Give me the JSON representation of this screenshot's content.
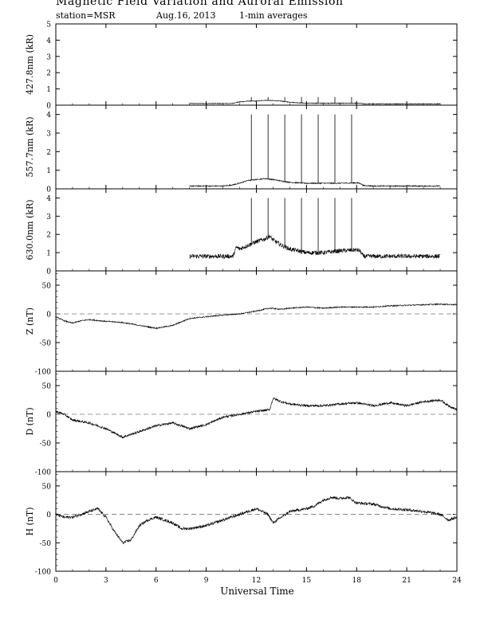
{
  "header": {
    "title": "Magnetic Field Variation and Auroral Emission",
    "station": "station=MSR",
    "date": "Aug.16, 2013",
    "averaging": "1-min averages"
  },
  "chart_data": [
    {
      "id": "p4278",
      "type": "line",
      "ylabel": "427.8nm (kR)",
      "ylim": [
        0,
        5
      ],
      "yticks": [
        0,
        1,
        2,
        3,
        4,
        5
      ],
      "xlim": [
        0,
        24
      ],
      "x": [
        8,
        9,
        10,
        10.5,
        11,
        11.5,
        12,
        12.5,
        13,
        13.5,
        14,
        15,
        16,
        17,
        18,
        18.2,
        18.4,
        19,
        20,
        21,
        22,
        23
      ],
      "y": [
        0.1,
        0.1,
        0.1,
        0.1,
        0.2,
        0.25,
        0.25,
        0.3,
        0.28,
        0.25,
        0.18,
        0.12,
        0.12,
        0.12,
        0.12,
        0.12,
        0.08,
        0.08,
        0.08,
        0.08,
        0.08,
        0.08
      ],
      "noise": 0.025,
      "spikes_x": [
        11.7,
        12.7,
        13.7,
        14.7,
        15.7,
        16.7,
        17.7
      ],
      "spike_top": 0.5
    },
    {
      "id": "p5577",
      "type": "line",
      "ylabel": "557.7nm (kR)",
      "ylim": [
        0,
        4.5
      ],
      "yticks": [
        0,
        1,
        2,
        3,
        4
      ],
      "xlim": [
        0,
        24
      ],
      "x": [
        8,
        9,
        10,
        10.5,
        11,
        11.5,
        12,
        12.5,
        13,
        13.5,
        14,
        15,
        16,
        17,
        18,
        18.2,
        18.4,
        19,
        20,
        21,
        22,
        23
      ],
      "y": [
        0.15,
        0.15,
        0.15,
        0.2,
        0.3,
        0.45,
        0.5,
        0.55,
        0.5,
        0.42,
        0.35,
        0.3,
        0.3,
        0.3,
        0.32,
        0.3,
        0.18,
        0.15,
        0.15,
        0.15,
        0.15,
        0.15
      ],
      "noise": 0.03,
      "spikes_x": [
        11.7,
        12.7,
        13.7,
        14.7,
        15.7,
        16.7,
        17.7
      ],
      "spike_top": 4.0
    },
    {
      "id": "p6300",
      "type": "line",
      "ylabel": "630.0nm (kR)",
      "ylim": [
        0,
        4.5
      ],
      "yticks": [
        0,
        1,
        2,
        3,
        4
      ],
      "xlim": [
        0,
        24
      ],
      "x": [
        8,
        9,
        10,
        10.6,
        10.8,
        11,
        11.5,
        12,
        12.5,
        12.8,
        13,
        13.5,
        14,
        15,
        16,
        17,
        18,
        18.2,
        18.4,
        19,
        20,
        21,
        22,
        23
      ],
      "y": [
        0.8,
        0.8,
        0.8,
        0.8,
        1.3,
        1.2,
        1.4,
        1.6,
        1.75,
        1.9,
        1.7,
        1.4,
        1.2,
        1.0,
        1.0,
        1.1,
        1.15,
        1.1,
        0.8,
        0.8,
        0.8,
        0.8,
        0.8,
        0.8
      ],
      "noise": 0.12,
      "spikes_x": [
        11.7,
        12.7,
        13.7,
        14.7,
        15.7,
        16.7,
        17.7
      ],
      "spike_top": 4.0
    },
    {
      "id": "pZ",
      "type": "line",
      "ylabel": "Z (nT)",
      "ylim": [
        -100,
        75
      ],
      "yticks": [
        -100,
        -50,
        0,
        50
      ],
      "xlim": [
        0,
        24
      ],
      "baseline": 0,
      "x": [
        0,
        0.5,
        1,
        1.5,
        2,
        3,
        4,
        5,
        6,
        7,
        8,
        9,
        10,
        11,
        12,
        12.8,
        13.5,
        14,
        15,
        16,
        17,
        18,
        19,
        20,
        21,
        22,
        23,
        24
      ],
      "y": [
        -5,
        -12,
        -16,
        -12,
        -10,
        -13,
        -15,
        -20,
        -25,
        -20,
        -8,
        -5,
        -2,
        0,
        5,
        10,
        8,
        10,
        12,
        10,
        12,
        12,
        12,
        14,
        15,
        16,
        17,
        16
      ],
      "noise": 1.0
    },
    {
      "id": "pD",
      "type": "line",
      "ylabel": "D (nT)",
      "ylim": [
        -100,
        75
      ],
      "yticks": [
        -100,
        -50,
        0,
        50
      ],
      "xlim": [
        0,
        24
      ],
      "baseline": 0,
      "x": [
        0,
        0.5,
        1,
        2,
        3,
        4,
        4.5,
        5,
        6,
        7,
        8,
        9,
        10,
        11,
        12,
        12.8,
        13,
        13.5,
        14,
        15,
        16,
        17,
        18,
        19,
        20,
        21,
        22,
        23,
        23.5,
        24
      ],
      "y": [
        5,
        0,
        -10,
        -15,
        -25,
        -40,
        -35,
        -30,
        -20,
        -15,
        -25,
        -18,
        -5,
        0,
        5,
        8,
        28,
        22,
        18,
        15,
        15,
        18,
        20,
        15,
        20,
        15,
        22,
        25,
        15,
        8
      ],
      "noise": 2.0
    },
    {
      "id": "pH",
      "type": "line",
      "ylabel": "H (nT)",
      "ylim": [
        -100,
        75
      ],
      "yticks": [
        -100,
        -50,
        0,
        50
      ],
      "xlim": [
        0,
        24
      ],
      "baseline": 0,
      "x": [
        0,
        0.5,
        1,
        2,
        2.5,
        3,
        3.5,
        4,
        4.5,
        5,
        5.5,
        6,
        7,
        7.5,
        8,
        9,
        10,
        11,
        12,
        12.7,
        13,
        13.5,
        14,
        15,
        15.5,
        16,
        16.5,
        17,
        17.5,
        18,
        19,
        20,
        21,
        22,
        23,
        23.5,
        24
      ],
      "y": [
        0,
        -5,
        -5,
        5,
        10,
        -5,
        -30,
        -50,
        -45,
        -20,
        -10,
        -5,
        -15,
        -25,
        -25,
        -20,
        -10,
        0,
        10,
        0,
        -15,
        -5,
        5,
        10,
        15,
        25,
        30,
        28,
        30,
        20,
        18,
        10,
        8,
        5,
        0,
        -10,
        -5
      ],
      "noise": 2.5
    }
  ],
  "xaxis": {
    "label": "Universal Time",
    "ticks": [
      0,
      3,
      6,
      9,
      12,
      15,
      18,
      21,
      24
    ]
  }
}
